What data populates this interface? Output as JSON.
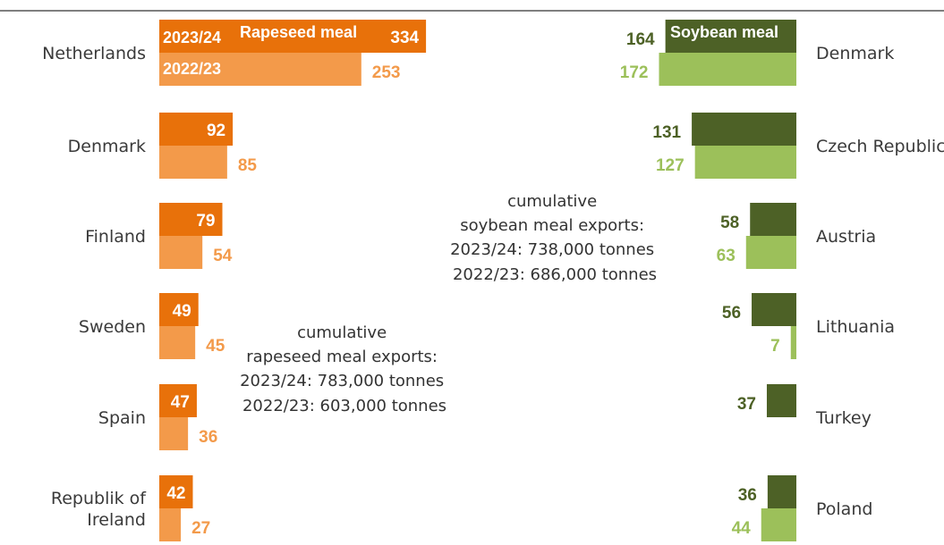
{
  "chart_data": [
    {
      "type": "bar",
      "orientation": "horizontal",
      "title": "Rapeseed meal",
      "categories": [
        "Netherlands",
        "Denmark",
        "Finland",
        "Sweden",
        "Spain",
        "Republik of Ireland"
      ],
      "category_lines": [
        [
          "Netherlands"
        ],
        [
          "Denmark"
        ],
        [
          "Finland"
        ],
        [
          "Sweden"
        ],
        [
          "Spain"
        ],
        [
          "Republik of",
          "Ireland"
        ]
      ],
      "series": [
        {
          "name": "2023/24",
          "values": [
            334,
            92,
            79,
            49,
            47,
            42
          ],
          "color": "#e8710a"
        },
        {
          "name": "2022/23",
          "values": [
            253,
            85,
            54,
            45,
            36,
            27
          ],
          "color": "#f39a4a"
        }
      ],
      "annotation": [
        "cumulative",
        "rapeseed meal exports:",
        "2023/24: 783,000 tonnes",
        "2022/23: 603,000 tonnes"
      ]
    },
    {
      "type": "bar",
      "orientation": "horizontal",
      "title": "Soybean meal",
      "categories": [
        "Denmark",
        "Czech Republic",
        "Austria",
        "Lithuania",
        "Turkey",
        "Poland"
      ],
      "category_lines": [
        [
          "Denmark"
        ],
        [
          "Czech Republic"
        ],
        [
          "Austria"
        ],
        [
          "Lithuania"
        ],
        [
          "Turkey"
        ],
        [
          "Poland"
        ]
      ],
      "series": [
        {
          "name": "2023/24",
          "values": [
            164,
            131,
            58,
            56,
            37,
            36
          ],
          "color": "#4d6126"
        },
        {
          "name": "2022/23",
          "values": [
            172,
            127,
            63,
            7,
            null,
            44
          ],
          "color": "#9cc05a"
        }
      ],
      "annotation": [
        "cumulative",
        "soybean meal exports:",
        "2023/24: 738,000 tonnes",
        "2022/23: 686,000 tonnes"
      ]
    }
  ]
}
